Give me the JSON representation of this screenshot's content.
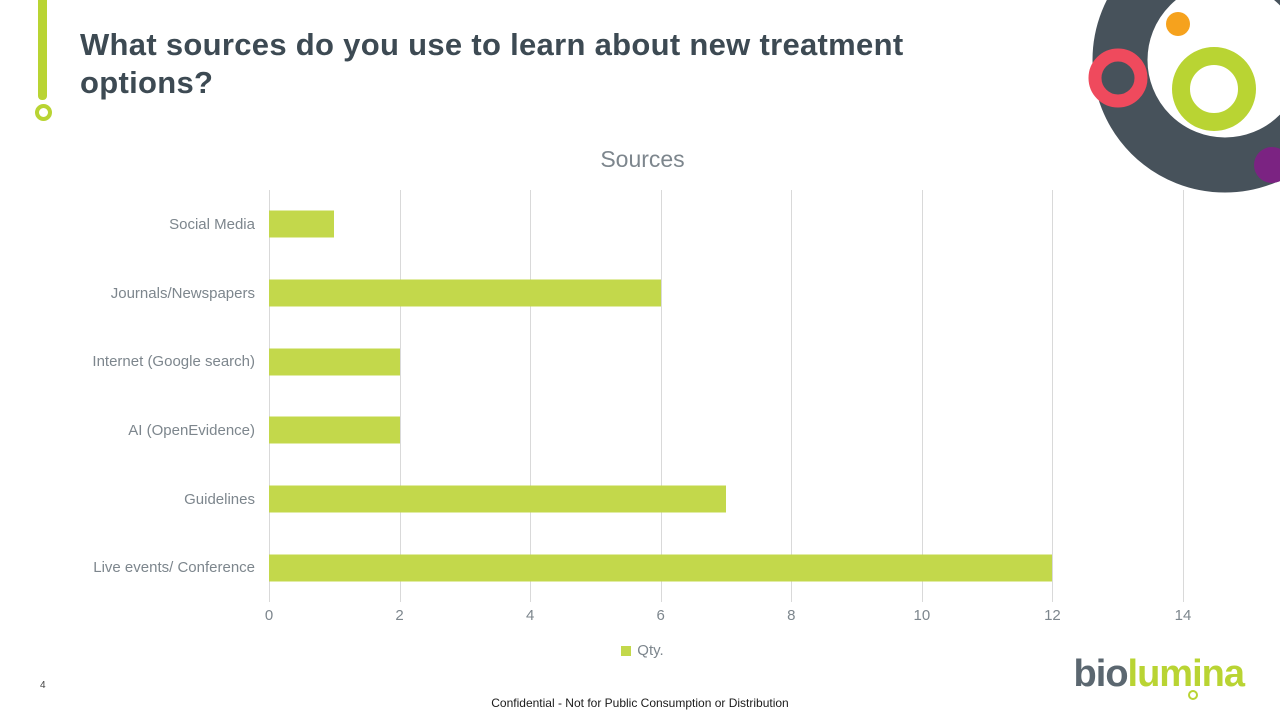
{
  "slide": {
    "title": "What sources do you use to learn about new treatment options?",
    "page_number": "4",
    "footer": "Confidential - Not for Public Consumption or Distribution",
    "logo": {
      "gray": "bio",
      "green": "lumina"
    }
  },
  "chart_data": {
    "type": "bar",
    "orientation": "horizontal",
    "title": "Sources",
    "categories": [
      "Social Media",
      "Journals/Newspapers",
      "Internet (Google search)",
      "AI (OpenEvidence)",
      "Guidelines",
      "Live events/ Conference"
    ],
    "values": [
      1,
      6,
      2,
      2,
      7,
      12
    ],
    "series_name": "Qty.",
    "xlabel": "",
    "ylabel": "",
    "xlim": [
      0,
      14
    ],
    "x_ticks": [
      0,
      2,
      4,
      6,
      8,
      10,
      12,
      14
    ],
    "grid": true,
    "legend_position": "bottom",
    "bar_color": "#c3d84b"
  },
  "colors": {
    "title_text": "#3d4a53",
    "chart_text": "#7d868d",
    "gridline": "#d9d9d9",
    "brand_green": "#b9d433",
    "logo_gray": "#5b6770",
    "deco_dark": "#47525b",
    "deco_pink": "#ef4a5d",
    "deco_orange": "#f6a21d",
    "deco_purple": "#7b2382",
    "footer_text": "#1b1b1b"
  }
}
